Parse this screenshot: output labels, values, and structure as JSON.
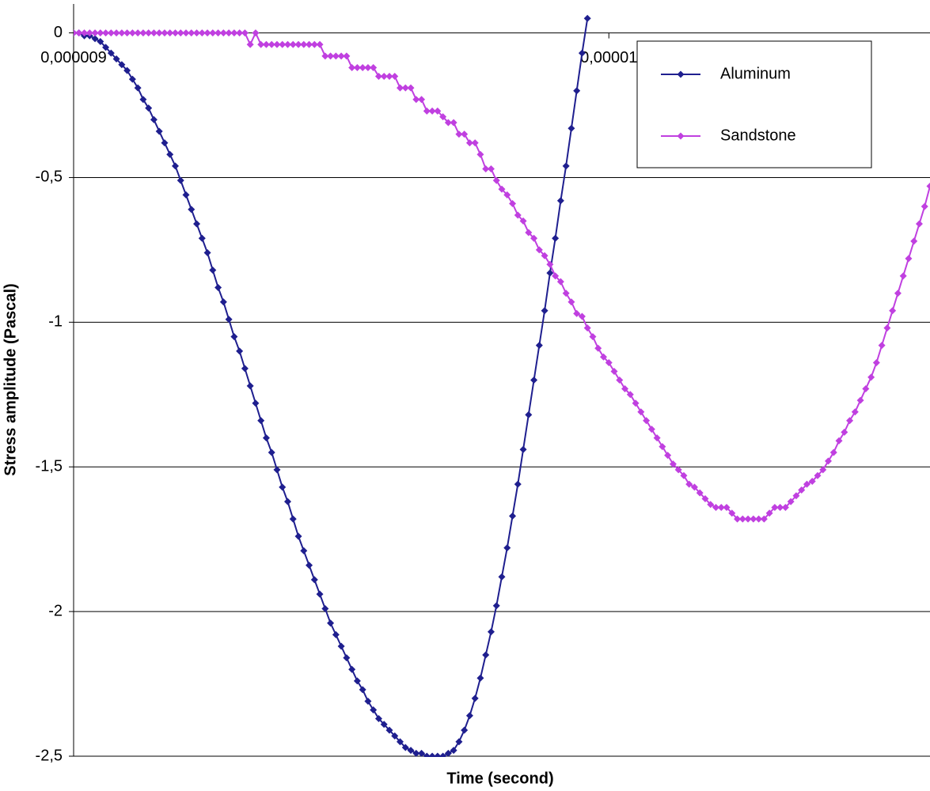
{
  "chart_data": {
    "type": "line",
    "xlabel": "Time (second)",
    "ylabel": "Stress  amplitude (Pascal)",
    "xlim": [
      9e-06,
      1.06e-05
    ],
    "ylim": [
      -2.5,
      0.1
    ],
    "xticks": [
      {
        "value": 9e-06,
        "label": "0,000009"
      },
      {
        "value": 1e-05,
        "label": "0,00001"
      }
    ],
    "yticks": [
      0,
      {
        "value": -0.5,
        "label": "-0,5"
      },
      -1,
      {
        "value": -1.5,
        "label": "-1,5"
      },
      -2,
      {
        "value": -2.5,
        "label": "-2,5"
      }
    ],
    "grid": true,
    "legend": "upper right",
    "x": [
      9e-06,
      9.01e-06,
      9.02e-06,
      9.03e-06,
      9.04e-06,
      9.05e-06,
      9.06e-06,
      9.07e-06,
      9.08e-06,
      9.09e-06,
      9.1e-06,
      9.11e-06,
      9.12e-06,
      9.13e-06,
      9.14e-06,
      9.15e-06,
      9.16e-06,
      9.17e-06,
      9.18e-06,
      9.19e-06,
      9.2e-06,
      9.21e-06,
      9.22e-06,
      9.23e-06,
      9.24e-06,
      9.25e-06,
      9.26e-06,
      9.27e-06,
      9.28e-06,
      9.29e-06,
      9.3e-06,
      9.31e-06,
      9.32e-06,
      9.33e-06,
      9.34e-06,
      9.35e-06,
      9.36e-06,
      9.37e-06,
      9.38e-06,
      9.39e-06,
      9.4e-06,
      9.41e-06,
      9.42e-06,
      9.43e-06,
      9.44e-06,
      9.45e-06,
      9.46e-06,
      9.47e-06,
      9.48e-06,
      9.49e-06,
      9.5e-06,
      9.51e-06,
      9.52e-06,
      9.53e-06,
      9.54e-06,
      9.55e-06,
      9.56e-06,
      9.57e-06,
      9.58e-06,
      9.59e-06,
      9.6e-06,
      9.61e-06,
      9.62e-06,
      9.63e-06,
      9.64e-06,
      9.65e-06,
      9.66e-06,
      9.67e-06,
      9.68e-06,
      9.69e-06,
      9.7e-06,
      9.71e-06,
      9.72e-06,
      9.73e-06,
      9.74e-06,
      9.75e-06,
      9.76e-06,
      9.77e-06,
      9.78e-06,
      9.79e-06,
      9.8e-06,
      9.81e-06,
      9.82e-06,
      9.83e-06,
      9.84e-06,
      9.85e-06,
      9.86e-06,
      9.87e-06,
      9.88e-06,
      9.89e-06,
      9.9e-06,
      9.91e-06,
      9.92e-06,
      9.93e-06,
      9.94e-06,
      9.95e-06,
      9.96e-06,
      9.97e-06,
      9.98e-06,
      9.99e-06,
      1e-05,
      1.001e-05,
      1.002e-05,
      1.003e-05,
      1.004e-05,
      1.005e-05,
      1.006e-05,
      1.007e-05,
      1.008e-05,
      1.009e-05,
      1.01e-05,
      1.011e-05,
      1.012e-05,
      1.013e-05,
      1.014e-05,
      1.015e-05,
      1.016e-05,
      1.017e-05,
      1.018e-05,
      1.019e-05,
      1.02e-05,
      1.021e-05,
      1.022e-05,
      1.023e-05,
      1.024e-05,
      1.025e-05,
      1.026e-05,
      1.027e-05,
      1.028e-05,
      1.029e-05,
      1.03e-05,
      1.031e-05,
      1.032e-05,
      1.033e-05,
      1.034e-05,
      1.035e-05,
      1.036e-05,
      1.037e-05,
      1.038e-05,
      1.039e-05,
      1.04e-05,
      1.041e-05,
      1.042e-05,
      1.043e-05,
      1.044e-05,
      1.045e-05,
      1.046e-05,
      1.047e-05,
      1.048e-05,
      1.049e-05,
      1.05e-05,
      1.051e-05,
      1.052e-05,
      1.053e-05,
      1.054e-05,
      1.055e-05,
      1.056e-05,
      1.057e-05,
      1.058e-05,
      1.059e-05,
      1.06e-05
    ],
    "series": [
      {
        "name": "Aluminum",
        "color": "#1f1f8f",
        "values": [
          0,
          0,
          -0.01,
          -0.01,
          -0.02,
          -0.03,
          -0.05,
          -0.07,
          -0.09,
          -0.11,
          -0.13,
          -0.16,
          -0.19,
          -0.23,
          -0.26,
          -0.3,
          -0.34,
          -0.38,
          -0.42,
          -0.46,
          -0.51,
          -0.56,
          -0.61,
          -0.66,
          -0.71,
          -0.76,
          -0.82,
          -0.88,
          -0.93,
          -0.99,
          -1.05,
          -1.1,
          -1.16,
          -1.22,
          -1.28,
          -1.34,
          -1.4,
          -1.45,
          -1.51,
          -1.57,
          -1.62,
          -1.68,
          -1.74,
          -1.79,
          -1.84,
          -1.89,
          -1.94,
          -1.99,
          -2.04,
          -2.08,
          -2.12,
          -2.16,
          -2.2,
          -2.24,
          -2.27,
          -2.31,
          -2.34,
          -2.37,
          -2.39,
          -2.41,
          -2.43,
          -2.45,
          -2.47,
          -2.48,
          -2.49,
          -2.49,
          -2.5,
          -2.5,
          -2.5,
          -2.5,
          -2.49,
          -2.48,
          -2.45,
          -2.41,
          -2.36,
          -2.3,
          -2.23,
          -2.15,
          -2.07,
          -1.98,
          -1.88,
          -1.78,
          -1.67,
          -1.56,
          -1.44,
          -1.32,
          -1.2,
          -1.08,
          -0.96,
          -0.83,
          -0.71,
          -0.58,
          -0.46,
          -0.33,
          -0.2,
          -0.07,
          0.05,
          null,
          null,
          null,
          null,
          null,
          null,
          null,
          null,
          null,
          null,
          null,
          null,
          null,
          null,
          null,
          null,
          null,
          null,
          null,
          null,
          null,
          null,
          null,
          null,
          null,
          null,
          null,
          null,
          null,
          null,
          null,
          null,
          null,
          null,
          null,
          null,
          null,
          null,
          null,
          null,
          null,
          null,
          null,
          null,
          null,
          null,
          null,
          null,
          null,
          null,
          null,
          null,
          null,
          null,
          null,
          null,
          null,
          null,
          null,
          null,
          null,
          null,
          null,
          null
        ]
      },
      {
        "name": "Sandstone",
        "color": "#c040e0",
        "values": [
          0,
          0,
          0,
          0,
          0,
          0,
          0,
          0,
          0,
          0,
          0,
          0,
          0,
          0,
          0,
          0,
          0,
          0,
          0,
          0,
          0,
          0,
          0,
          0,
          0,
          0,
          0,
          0,
          0,
          0,
          0,
          0,
          0,
          -0.04,
          0,
          -0.04,
          -0.04,
          -0.04,
          -0.04,
          -0.04,
          -0.04,
          -0.04,
          -0.04,
          -0.04,
          -0.04,
          -0.04,
          -0.04,
          -0.08,
          -0.08,
          -0.08,
          -0.08,
          -0.08,
          -0.12,
          -0.12,
          -0.12,
          -0.12,
          -0.12,
          -0.15,
          -0.15,
          -0.15,
          -0.15,
          -0.19,
          -0.19,
          -0.19,
          -0.23,
          -0.23,
          -0.27,
          -0.27,
          -0.27,
          -0.29,
          -0.31,
          -0.31,
          -0.35,
          -0.35,
          -0.38,
          -0.38,
          -0.42,
          -0.47,
          -0.47,
          -0.51,
          -0.54,
          -0.56,
          -0.59,
          -0.63,
          -0.65,
          -0.69,
          -0.71,
          -0.75,
          -0.77,
          -0.8,
          -0.84,
          -0.86,
          -0.9,
          -0.93,
          -0.97,
          -0.98,
          -1.02,
          -1.05,
          -1.09,
          -1.12,
          -1.14,
          -1.17,
          -1.2,
          -1.23,
          -1.25,
          -1.28,
          -1.31,
          -1.34,
          -1.37,
          -1.4,
          -1.43,
          -1.46,
          -1.49,
          -1.51,
          -1.53,
          -1.56,
          -1.57,
          -1.59,
          -1.61,
          -1.63,
          -1.64,
          -1.64,
          -1.64,
          -1.66,
          -1.68,
          -1.68,
          -1.68,
          -1.68,
          -1.68,
          -1.68,
          -1.66,
          -1.64,
          -1.64,
          -1.64,
          -1.62,
          -1.6,
          -1.58,
          -1.56,
          -1.55,
          -1.53,
          -1.51,
          -1.48,
          -1.45,
          -1.41,
          -1.38,
          -1.34,
          -1.31,
          -1.27,
          -1.23,
          -1.19,
          -1.14,
          -1.08,
          -1.02,
          -0.96,
          -0.9,
          -0.84,
          -0.78,
          -0.72,
          -0.66,
          -0.6,
          -0.53
        ]
      }
    ]
  }
}
